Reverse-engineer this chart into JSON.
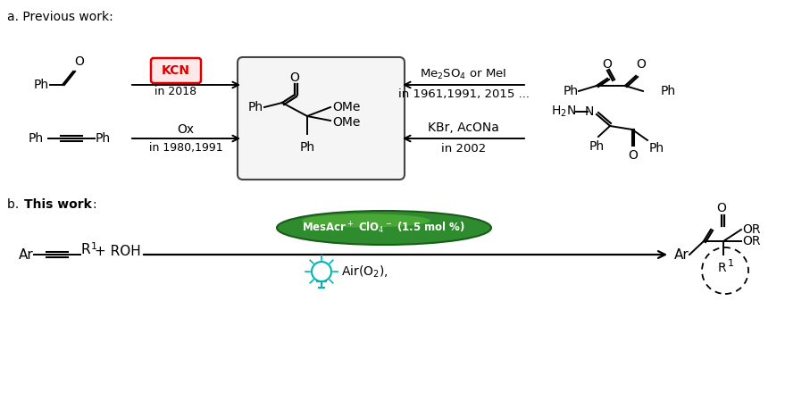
{
  "bg_color": "#ffffff",
  "figsize": [
    9.07,
    4.5
  ],
  "dpi": 100,
  "section_a": "a. Previous work:",
  "section_b_prefix": "b. ",
  "section_b_bold": "This work",
  "section_b_suffix": ":"
}
